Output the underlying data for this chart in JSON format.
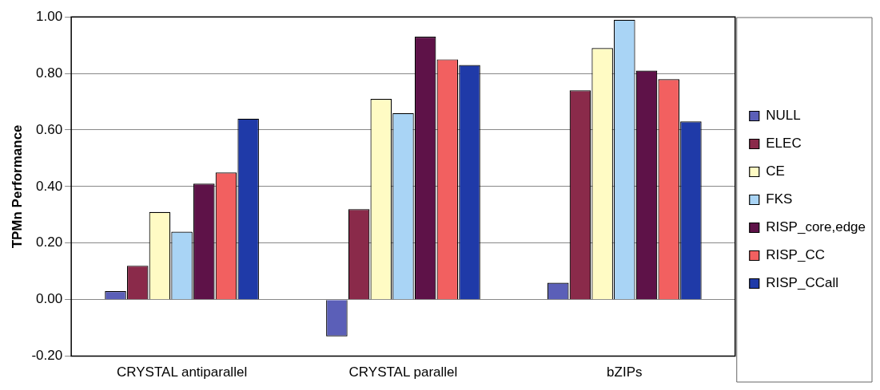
{
  "chart_data": {
    "type": "bar",
    "ylabel": "TPMn Performance",
    "categories": [
      "CRYSTAL antiparallel",
      "CRYSTAL parallel",
      "bZIPs"
    ],
    "series": [
      {
        "name": "NULL",
        "color": "#5b5fb8",
        "values": [
          0.03,
          -0.13,
          0.06
        ]
      },
      {
        "name": "ELEC",
        "color": "#8a2a4a",
        "values": [
          0.12,
          0.32,
          0.74
        ]
      },
      {
        "name": "CE",
        "color": "#fffbc4",
        "values": [
          0.31,
          0.71,
          0.89
        ]
      },
      {
        "name": "FKS",
        "color": "#a9d4f5",
        "values": [
          0.24,
          0.66,
          0.99
        ]
      },
      {
        "name": "RISP_core,edge",
        "color": "#5e1248",
        "values": [
          0.41,
          0.93,
          0.81
        ]
      },
      {
        "name": "RISP_CC",
        "color": "#f26060",
        "values": [
          0.45,
          0.85,
          0.78
        ]
      },
      {
        "name": "RISP_CCall",
        "color": "#1f3aa8",
        "values": [
          0.64,
          0.83,
          0.63
        ]
      }
    ],
    "ylim": [
      -0.2,
      1
    ],
    "yticks": [
      {
        "value": -0.2,
        "label": "-0.20"
      },
      {
        "value": 0,
        "label": "0.00"
      },
      {
        "value": 0.2,
        "label": "0.20"
      },
      {
        "value": 0.4,
        "label": "0.40"
      },
      {
        "value": 0.6,
        "label": "0.60"
      },
      {
        "value": 0.8,
        "label": "0.80"
      },
      {
        "value": 1,
        "label": "1.00"
      }
    ],
    "grid": "y",
    "legend": "right"
  }
}
